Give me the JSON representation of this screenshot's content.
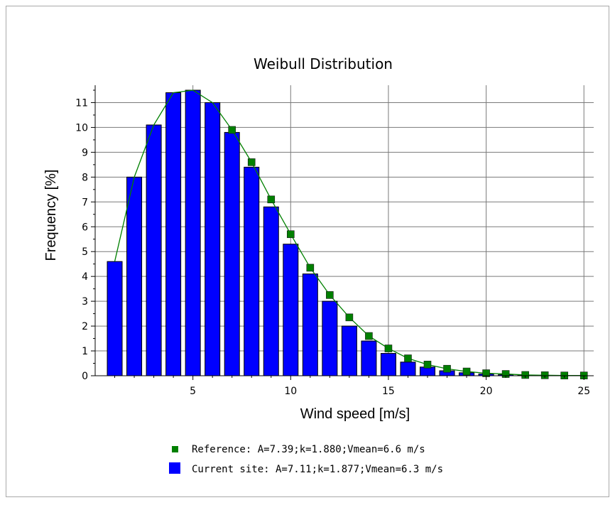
{
  "chart_data": {
    "type": "bar",
    "title": "Weibull Distribution",
    "xlabel": "Wind speed [m/s]",
    "ylabel": "Frequency [%]",
    "xlim": [
      0,
      25.5
    ],
    "ylim": [
      0,
      11.7
    ],
    "x_ticks": [
      5,
      10,
      15,
      20,
      25
    ],
    "y_ticks": [
      0,
      1,
      2,
      3,
      4,
      5,
      6,
      7,
      8,
      9,
      10,
      11
    ],
    "grid": true,
    "legend_position": "bottom",
    "x": [
      1,
      2,
      3,
      4,
      5,
      6,
      7,
      8,
      9,
      10,
      11,
      12,
      13,
      14,
      15,
      16,
      17,
      18,
      19,
      20,
      21,
      22,
      23,
      24,
      25
    ],
    "series": [
      {
        "name": "Current site: A=7.11;k=1.877;Vmean=6.3 m/s",
        "type": "bar",
        "color": "#0000ff",
        "values": [
          4.6,
          8.0,
          10.1,
          11.4,
          11.5,
          11.0,
          9.8,
          8.4,
          6.8,
          5.3,
          4.1,
          3.0,
          2.0,
          1.4,
          0.9,
          0.55,
          0.35,
          0.2,
          0.12,
          0.07,
          0.04,
          0.02,
          0.01,
          0.01,
          0.0
        ]
      },
      {
        "name": "Reference: A=7.39;k=1.880;Vmean=6.6 m/s",
        "type": "line",
        "color": "#008000",
        "values": [
          4.6,
          8.0,
          10.1,
          11.4,
          11.5,
          11.0,
          9.9,
          8.6,
          7.1,
          5.7,
          4.35,
          3.25,
          2.35,
          1.6,
          1.1,
          0.7,
          0.45,
          0.28,
          0.17,
          0.1,
          0.07,
          0.03,
          0.02,
          0.01,
          0.01
        ]
      }
    ]
  }
}
